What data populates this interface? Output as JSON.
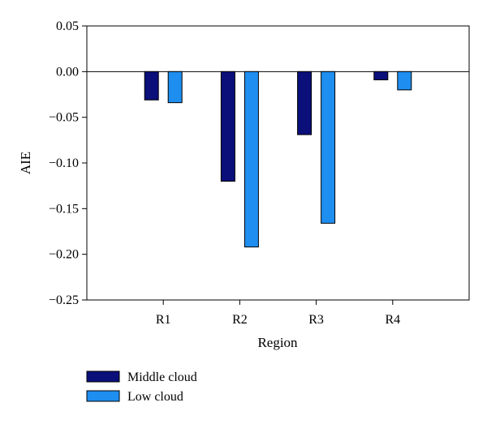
{
  "chart_data": {
    "type": "bar",
    "categories": [
      "R1",
      "R2",
      "R3",
      "R4"
    ],
    "series": [
      {
        "name": "Middle cloud",
        "values": [
          -0.031,
          -0.12,
          -0.069,
          -0.009
        ],
        "color": "#0a0f7a"
      },
      {
        "name": "Low cloud",
        "values": [
          -0.034,
          -0.192,
          -0.166,
          -0.02
        ],
        "color": "#1e8ef0"
      }
    ],
    "xlabel": "Region",
    "ylabel": "AIE",
    "ylim": [
      -0.25,
      0.05
    ],
    "yticks": [
      "0.05",
      "0.00",
      "−0.05",
      "−0.10",
      "−0.15",
      "−0.20",
      "−0.25"
    ],
    "grid": false,
    "zero_line": true,
    "legend_position": "bottom-left"
  }
}
